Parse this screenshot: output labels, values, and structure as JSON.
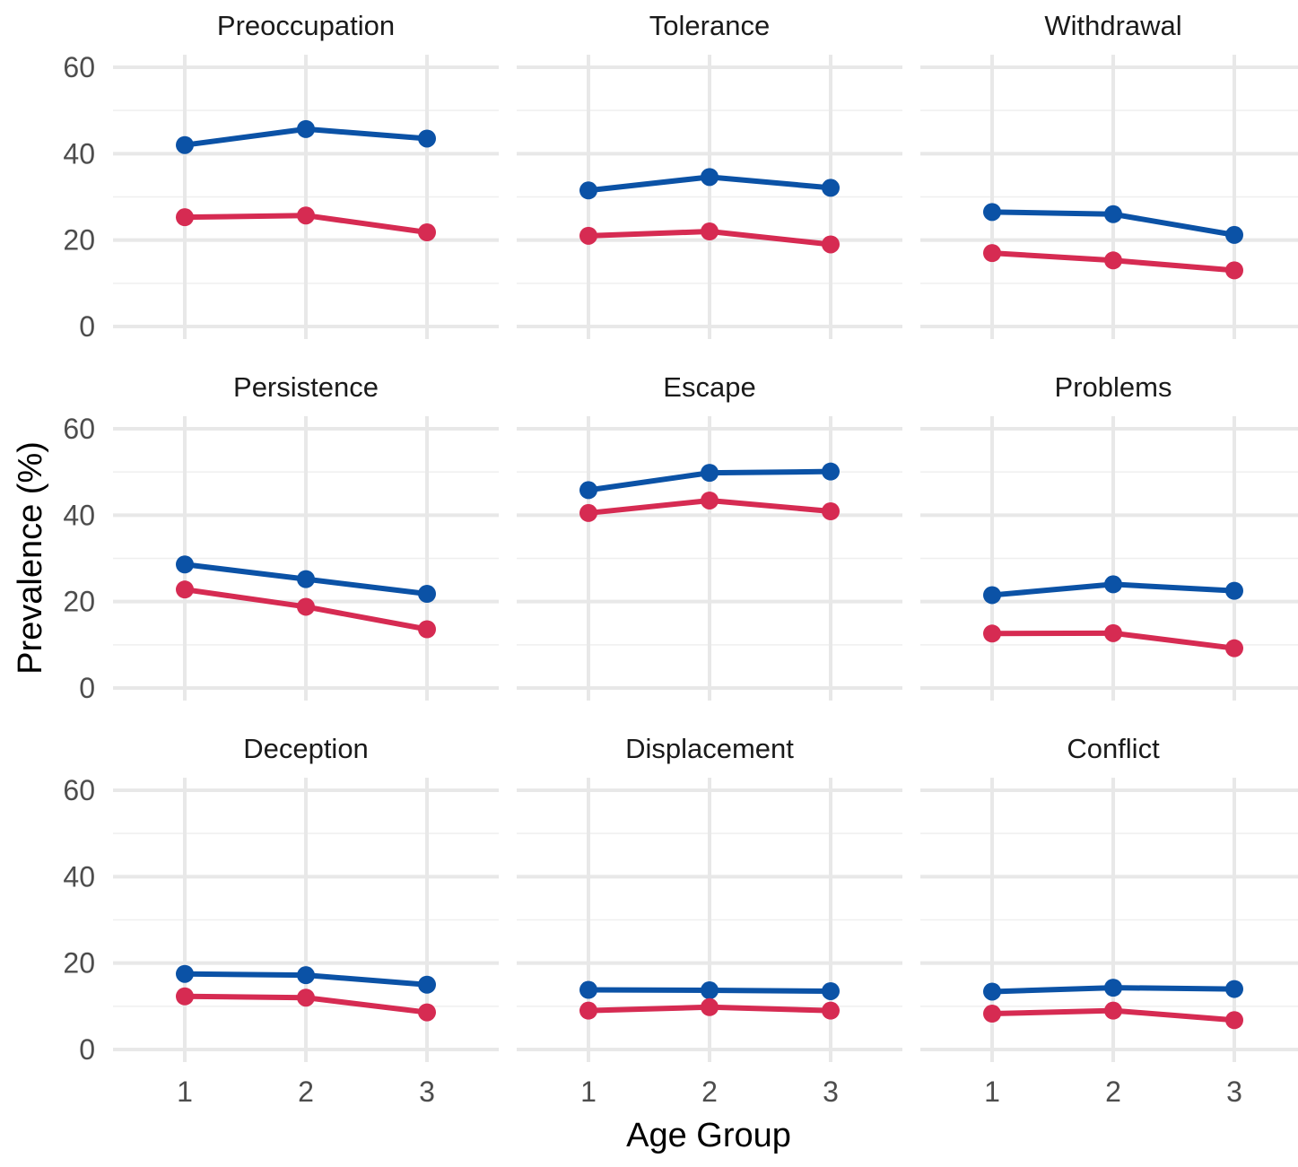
{
  "chart_data": {
    "type": "line",
    "xlabel": "Age Group",
    "ylabel": "Prevalence (%)",
    "x": [
      1,
      2,
      3
    ],
    "x_tick_labels": [
      "1",
      "2",
      "3"
    ],
    "ylim": [
      0,
      60
    ],
    "y_ticks": [
      0,
      20,
      40,
      60
    ],
    "y_tick_labels": [
      "0",
      "20",
      "40",
      "60"
    ],
    "grid": true,
    "legend": "none",
    "layout": "facet grid, 3 rows x 3 columns",
    "colors": {
      "series_a": "#0b52a6",
      "series_b": "#d62b52"
    },
    "panels": [
      {
        "title": "Preoccupation",
        "series": [
          {
            "color": "#0b52a6",
            "values": [
              42,
              45.7,
              43.5
            ]
          },
          {
            "color": "#d62b52",
            "values": [
              25.3,
              25.7,
              21.8
            ]
          }
        ]
      },
      {
        "title": "Tolerance",
        "series": [
          {
            "color": "#0b52a6",
            "values": [
              31.5,
              34.6,
              32.1
            ]
          },
          {
            "color": "#d62b52",
            "values": [
              21,
              22,
              19
            ]
          }
        ]
      },
      {
        "title": "Withdrawal",
        "series": [
          {
            "color": "#0b52a6",
            "values": [
              26.5,
              26,
              21.2
            ]
          },
          {
            "color": "#d62b52",
            "values": [
              17,
              15.3,
              13
            ]
          }
        ]
      },
      {
        "title": "Persistence",
        "series": [
          {
            "color": "#0b52a6",
            "values": [
              28.6,
              25.2,
              21.8
            ]
          },
          {
            "color": "#d62b52",
            "values": [
              22.8,
              18.8,
              13.6
            ]
          }
        ]
      },
      {
        "title": "Escape",
        "series": [
          {
            "color": "#0b52a6",
            "values": [
              45.8,
              49.8,
              50.1
            ]
          },
          {
            "color": "#d62b52",
            "values": [
              40.5,
              43.4,
              40.9
            ]
          }
        ]
      },
      {
        "title": "Problems",
        "series": [
          {
            "color": "#0b52a6",
            "values": [
              21.5,
              24,
              22.5
            ]
          },
          {
            "color": "#d62b52",
            "values": [
              12.6,
              12.7,
              9.2
            ]
          }
        ]
      },
      {
        "title": "Deception",
        "series": [
          {
            "color": "#0b52a6",
            "values": [
              17.5,
              17.2,
              15
            ]
          },
          {
            "color": "#d62b52",
            "values": [
              12.3,
              12,
              8.6
            ]
          }
        ]
      },
      {
        "title": "Displacement",
        "series": [
          {
            "color": "#0b52a6",
            "values": [
              13.8,
              13.7,
              13.5
            ]
          },
          {
            "color": "#d62b52",
            "values": [
              9,
              9.8,
              9
            ]
          }
        ]
      },
      {
        "title": "Conflict",
        "series": [
          {
            "color": "#0b52a6",
            "values": [
              13.4,
              14.3,
              14
            ]
          },
          {
            "color": "#d62b52",
            "values": [
              8.3,
              9,
              6.8
            ]
          }
        ]
      }
    ]
  }
}
